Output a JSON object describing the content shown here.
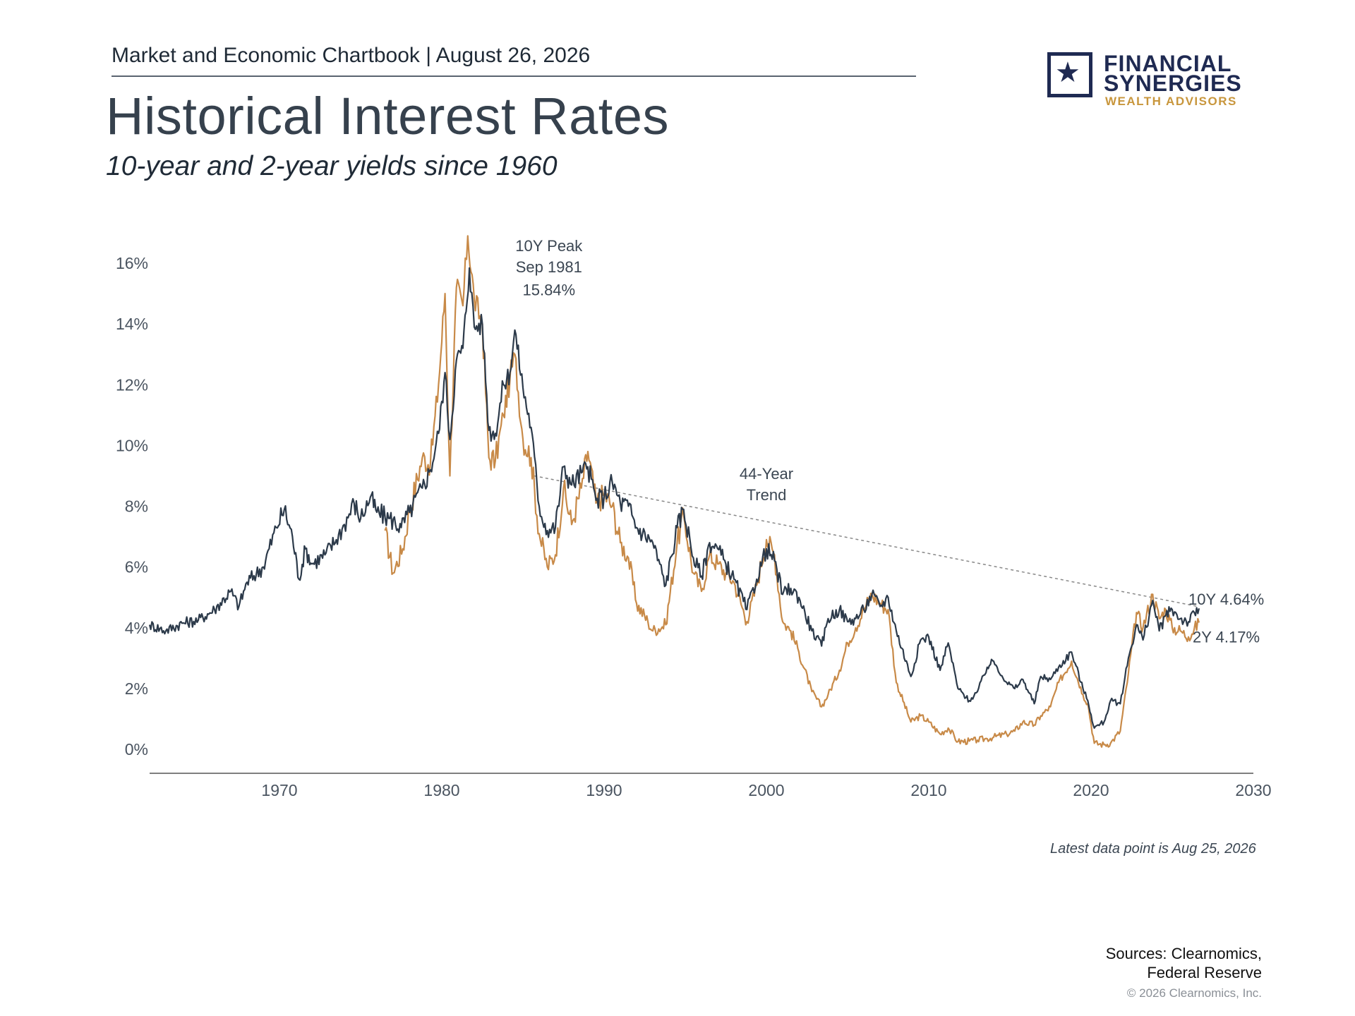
{
  "header": {
    "chartbook_label": "Market and Economic Chartbook | August 26, 2026",
    "title": "Historical Interest Rates",
    "subtitle": "10-year and 2-year yields since 1960"
  },
  "logo": {
    "line1": "FINANCIAL",
    "line2": "SYNERGIES",
    "line3": "WEALTH ADVISORS",
    "icon": "star-icon"
  },
  "colors": {
    "ten_year": "#2c3a4a",
    "two_year": "#c88a48",
    "trend": "#888888",
    "axis": "#555555"
  },
  "footer": {
    "latest_note": "Latest data point is Aug 25, 2026",
    "sources_line1": "Sources: Clearnomics,",
    "sources_line2": "Federal Reserve",
    "copyright": "© 2026 Clearnomics, Inc."
  },
  "chart_data": {
    "type": "line",
    "title": "Historical Interest Rates",
    "subtitle": "10-year and 2-year yields since 1960",
    "xlim": [
      1962,
      2030
    ],
    "ylim": [
      0,
      17
    ],
    "x_ticks": [
      "1970",
      "1980",
      "1990",
      "2000",
      "2010",
      "2020",
      "2030"
    ],
    "y_ticks": [
      "0%",
      "2%",
      "4%",
      "6%",
      "8%",
      "10%",
      "12%",
      "14%",
      "16%"
    ],
    "grid": false,
    "series": [
      {
        "name": "10Y",
        "end_label": "10Y 4.64%",
        "points": [
          [
            1962,
            4.1
          ],
          [
            1963,
            3.9
          ],
          [
            1964,
            4.15
          ],
          [
            1965,
            4.25
          ],
          [
            1966,
            4.6
          ],
          [
            1967,
            5.2
          ],
          [
            1967.5,
            4.7
          ],
          [
            1968,
            5.5
          ],
          [
            1969,
            6.0
          ],
          [
            1969.8,
            7.3
          ],
          [
            1970.3,
            7.9
          ],
          [
            1970.8,
            7.0
          ],
          [
            1971.2,
            5.6
          ],
          [
            1971.6,
            6.6
          ],
          [
            1972,
            6.1
          ],
          [
            1972.8,
            6.4
          ],
          [
            1973.5,
            6.9
          ],
          [
            1974,
            7.4
          ],
          [
            1974.6,
            8.1
          ],
          [
            1975,
            7.6
          ],
          [
            1975.6,
            8.3
          ],
          [
            1976,
            7.8
          ],
          [
            1976.8,
            7.6
          ],
          [
            1977.5,
            7.3
          ],
          [
            1978,
            7.8
          ],
          [
            1978.8,
            8.6
          ],
          [
            1979.3,
            9.2
          ],
          [
            1979.8,
            10.4
          ],
          [
            1980.2,
            12.4
          ],
          [
            1980.5,
            10.2
          ],
          [
            1980.9,
            12.8
          ],
          [
            1981.3,
            13.2
          ],
          [
            1981.7,
            15.84
          ],
          [
            1982,
            13.9
          ],
          [
            1982.5,
            14.0
          ],
          [
            1982.9,
            10.5
          ],
          [
            1983.3,
            10.4
          ],
          [
            1983.8,
            12.0
          ],
          [
            1984.2,
            12.4
          ],
          [
            1984.5,
            13.8
          ],
          [
            1985,
            11.9
          ],
          [
            1985.5,
            10.6
          ],
          [
            1986,
            8.0
          ],
          [
            1986.5,
            7.2
          ],
          [
            1987,
            7.3
          ],
          [
            1987.5,
            9.3
          ],
          [
            1988,
            8.7
          ],
          [
            1988.6,
            9.1
          ],
          [
            1989,
            9.3
          ],
          [
            1989.5,
            8.2
          ],
          [
            1990,
            8.3
          ],
          [
            1990.5,
            8.8
          ],
          [
            1991,
            8.1
          ],
          [
            1991.5,
            8.0
          ],
          [
            1992,
            7.3
          ],
          [
            1993,
            6.8
          ],
          [
            1993.8,
            5.4
          ],
          [
            1994.5,
            7.3
          ],
          [
            1994.9,
            7.9
          ],
          [
            1995.5,
            6.3
          ],
          [
            1996,
            5.7
          ],
          [
            1996.5,
            6.8
          ],
          [
            1997,
            6.6
          ],
          [
            1997.5,
            6.1
          ],
          [
            1998,
            5.6
          ],
          [
            1998.8,
            4.6
          ],
          [
            1999.4,
            5.6
          ],
          [
            2000,
            6.6
          ],
          [
            2000.5,
            6.2
          ],
          [
            2001,
            5.1
          ],
          [
            2001.5,
            5.3
          ],
          [
            2002,
            5.0
          ],
          [
            2002.8,
            3.9
          ],
          [
            2003.4,
            3.4
          ],
          [
            2003.8,
            4.3
          ],
          [
            2004.5,
            4.6
          ],
          [
            2005,
            4.2
          ],
          [
            2005.5,
            4.3
          ],
          [
            2006,
            4.6
          ],
          [
            2006.5,
            5.1
          ],
          [
            2007,
            4.7
          ],
          [
            2007.5,
            5.0
          ],
          [
            2008,
            3.9
          ],
          [
            2008.9,
            2.4
          ],
          [
            2009.5,
            3.6
          ],
          [
            2010,
            3.7
          ],
          [
            2010.7,
            2.6
          ],
          [
            2011.2,
            3.5
          ],
          [
            2011.8,
            2.0
          ],
          [
            2012.5,
            1.6
          ],
          [
            2013,
            1.9
          ],
          [
            2013.6,
            2.7
          ],
          [
            2014,
            2.9
          ],
          [
            2014.8,
            2.2
          ],
          [
            2015.3,
            2.0
          ],
          [
            2015.8,
            2.3
          ],
          [
            2016.5,
            1.5
          ],
          [
            2016.9,
            2.4
          ],
          [
            2017.5,
            2.3
          ],
          [
            2018,
            2.7
          ],
          [
            2018.8,
            3.2
          ],
          [
            2019.5,
            2.0
          ],
          [
            2019.8,
            1.6
          ],
          [
            2020.2,
            0.7
          ],
          [
            2020.8,
            0.9
          ],
          [
            2021.2,
            1.6
          ],
          [
            2021.8,
            1.5
          ],
          [
            2022.3,
            3.0
          ],
          [
            2022.8,
            4.1
          ],
          [
            2023.2,
            3.6
          ],
          [
            2023.8,
            4.9
          ],
          [
            2024.2,
            3.9
          ],
          [
            2024.6,
            4.4
          ],
          [
            2025,
            4.6
          ],
          [
            2025.5,
            4.3
          ],
          [
            2026,
            4.2
          ],
          [
            2026.65,
            4.64
          ]
        ]
      },
      {
        "name": "2Y",
        "end_label": "2Y 4.17%",
        "points": [
          [
            1976.5,
            7.2
          ],
          [
            1977,
            5.8
          ],
          [
            1977.6,
            6.6
          ],
          [
            1978,
            7.8
          ],
          [
            1978.8,
            9.6
          ],
          [
            1979.3,
            9.4
          ],
          [
            1979.8,
            12.0
          ],
          [
            1980.2,
            15.0
          ],
          [
            1980.5,
            9.0
          ],
          [
            1980.9,
            15.2
          ],
          [
            1981.3,
            14.6
          ],
          [
            1981.6,
            16.9
          ],
          [
            1982,
            14.8
          ],
          [
            1982.5,
            14.0
          ],
          [
            1982.9,
            9.6
          ],
          [
            1983.3,
            9.5
          ],
          [
            1983.8,
            11.0
          ],
          [
            1984.2,
            12.2
          ],
          [
            1984.5,
            13.0
          ],
          [
            1985,
            10.2
          ],
          [
            1985.5,
            9.6
          ],
          [
            1986,
            7.1
          ],
          [
            1986.5,
            6.0
          ],
          [
            1987,
            6.4
          ],
          [
            1987.5,
            8.6
          ],
          [
            1988,
            7.4
          ],
          [
            1988.6,
            8.6
          ],
          [
            1989,
            9.8
          ],
          [
            1989.5,
            8.1
          ],
          [
            1990,
            8.4
          ],
          [
            1990.5,
            8.0
          ],
          [
            1991,
            6.8
          ],
          [
            1991.5,
            6.3
          ],
          [
            1992,
            4.8
          ],
          [
            1992.7,
            4.2
          ],
          [
            1993,
            3.9
          ],
          [
            1993.8,
            4.1
          ],
          [
            1994.5,
            6.8
          ],
          [
            1994.9,
            7.7
          ],
          [
            1995.5,
            5.8
          ],
          [
            1996,
            5.2
          ],
          [
            1996.5,
            6.4
          ],
          [
            1997,
            6.1
          ],
          [
            1997.5,
            5.8
          ],
          [
            1998,
            5.5
          ],
          [
            1998.8,
            4.2
          ],
          [
            1999.4,
            5.4
          ],
          [
            2000,
            6.9
          ],
          [
            2000.5,
            6.4
          ],
          [
            2001,
            4.2
          ],
          [
            2001.5,
            3.9
          ],
          [
            2002,
            3.2
          ],
          [
            2002.8,
            1.9
          ],
          [
            2003.4,
            1.4
          ],
          [
            2003.8,
            1.8
          ],
          [
            2004.5,
            2.6
          ],
          [
            2005,
            3.5
          ],
          [
            2005.5,
            4.0
          ],
          [
            2006,
            4.6
          ],
          [
            2006.5,
            5.1
          ],
          [
            2007,
            4.8
          ],
          [
            2007.5,
            4.6
          ],
          [
            2008,
            2.2
          ],
          [
            2008.9,
            0.9
          ],
          [
            2009.5,
            1.1
          ],
          [
            2010,
            0.9
          ],
          [
            2010.7,
            0.5
          ],
          [
            2011.2,
            0.7
          ],
          [
            2011.8,
            0.25
          ],
          [
            2012.5,
            0.27
          ],
          [
            2013,
            0.3
          ],
          [
            2013.6,
            0.35
          ],
          [
            2014,
            0.4
          ],
          [
            2014.8,
            0.5
          ],
          [
            2015.3,
            0.6
          ],
          [
            2015.8,
            0.9
          ],
          [
            2016.5,
            0.8
          ],
          [
            2016.9,
            1.1
          ],
          [
            2017.5,
            1.4
          ],
          [
            2018,
            2.2
          ],
          [
            2018.8,
            2.9
          ],
          [
            2019.5,
            1.8
          ],
          [
            2019.8,
            1.5
          ],
          [
            2020.2,
            0.2
          ],
          [
            2020.8,
            0.15
          ],
          [
            2021.2,
            0.2
          ],
          [
            2021.8,
            0.6
          ],
          [
            2022.3,
            2.5
          ],
          [
            2022.8,
            4.5
          ],
          [
            2023.2,
            4.0
          ],
          [
            2023.8,
            5.1
          ],
          [
            2024.2,
            4.3
          ],
          [
            2024.6,
            4.6
          ],
          [
            2025,
            4.0
          ],
          [
            2025.5,
            3.9
          ],
          [
            2026,
            3.7
          ],
          [
            2026.65,
            4.17
          ]
        ]
      }
    ],
    "trend": {
      "label_line1": "44-Year",
      "label_line2": "Trend",
      "from": [
        1985.7,
        9.0
      ],
      "to": [
        2026.6,
        4.7
      ]
    },
    "peak_annotation": {
      "line1": "10Y Peak",
      "line2": "Sep 1981",
      "line3": "15.84%"
    }
  }
}
